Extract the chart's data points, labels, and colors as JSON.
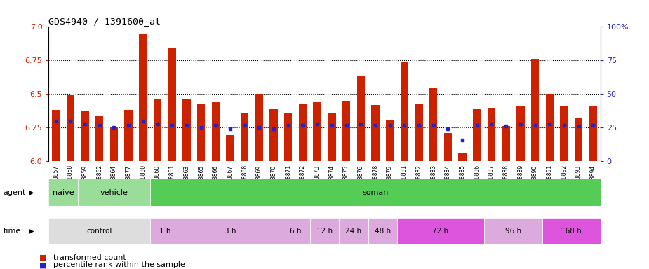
{
  "title": "GDS4940 / 1391600_at",
  "samples": [
    "GSM338857",
    "GSM338858",
    "GSM338859",
    "GSM338862",
    "GSM338864",
    "GSM338877",
    "GSM338880",
    "GSM338860",
    "GSM338861",
    "GSM338863",
    "GSM338865",
    "GSM338866",
    "GSM338867",
    "GSM338868",
    "GSM338869",
    "GSM338870",
    "GSM338871",
    "GSM338872",
    "GSM338873",
    "GSM338874",
    "GSM338875",
    "GSM338876",
    "GSM338878",
    "GSM338879",
    "GSM338881",
    "GSM338882",
    "GSM338883",
    "GSM338884",
    "GSM338885",
    "GSM338886",
    "GSM338887",
    "GSM338888",
    "GSM338889",
    "GSM338890",
    "GSM338891",
    "GSM338892",
    "GSM338893",
    "GSM338894"
  ],
  "red_values": [
    6.38,
    6.49,
    6.37,
    6.34,
    6.25,
    6.38,
    6.95,
    6.46,
    6.84,
    6.46,
    6.43,
    6.44,
    6.2,
    6.36,
    6.5,
    6.39,
    6.36,
    6.43,
    6.44,
    6.36,
    6.45,
    6.63,
    6.42,
    6.31,
    6.74,
    6.43,
    6.55,
    6.21,
    6.06,
    6.39,
    6.4,
    6.26,
    6.41,
    6.76,
    6.5,
    6.41,
    6.32,
    6.41
  ],
  "blue_values": [
    6.3,
    6.3,
    6.28,
    6.27,
    6.25,
    6.27,
    6.3,
    6.28,
    6.27,
    6.27,
    6.25,
    6.27,
    6.24,
    6.27,
    6.25,
    6.24,
    6.27,
    6.27,
    6.28,
    6.27,
    6.27,
    6.28,
    6.27,
    6.27,
    6.27,
    6.27,
    6.27,
    6.24,
    6.16,
    6.27,
    6.28,
    6.26,
    6.28,
    6.27,
    6.28,
    6.27,
    6.26,
    6.27
  ],
  "ymin": 6.0,
  "ymax": 7.0,
  "yticks_left": [
    6.0,
    6.25,
    6.5,
    6.75,
    7.0
  ],
  "yticks_right": [
    0,
    25,
    50,
    75,
    100
  ],
  "agent_info": [
    {
      "label": "naive",
      "start": 0,
      "end": 2,
      "color": "#99DD99"
    },
    {
      "label": "vehicle",
      "start": 2,
      "end": 7,
      "color": "#99DD99"
    },
    {
      "label": "soman",
      "start": 7,
      "end": 38,
      "color": "#55CC55"
    }
  ],
  "time_info": [
    {
      "label": "control",
      "start": 0,
      "end": 7,
      "color": "#DDDDDD"
    },
    {
      "label": "1 h",
      "start": 7,
      "end": 9,
      "color": "#DDAADD"
    },
    {
      "label": "3 h",
      "start": 9,
      "end": 16,
      "color": "#DDAADD"
    },
    {
      "label": "6 h",
      "start": 16,
      "end": 18,
      "color": "#DDAADD"
    },
    {
      "label": "12 h",
      "start": 18,
      "end": 20,
      "color": "#DDAADD"
    },
    {
      "label": "24 h",
      "start": 20,
      "end": 22,
      "color": "#DDAADD"
    },
    {
      "label": "48 h",
      "start": 22,
      "end": 24,
      "color": "#DDAADD"
    },
    {
      "label": "72 h",
      "start": 24,
      "end": 30,
      "color": "#DD55DD"
    },
    {
      "label": "96 h",
      "start": 30,
      "end": 34,
      "color": "#DDAADD"
    },
    {
      "label": "168 h",
      "start": 34,
      "end": 38,
      "color": "#DD55DD"
    }
  ],
  "bar_color": "#CC2200",
  "dot_color": "#2222CC",
  "bar_width": 0.55
}
